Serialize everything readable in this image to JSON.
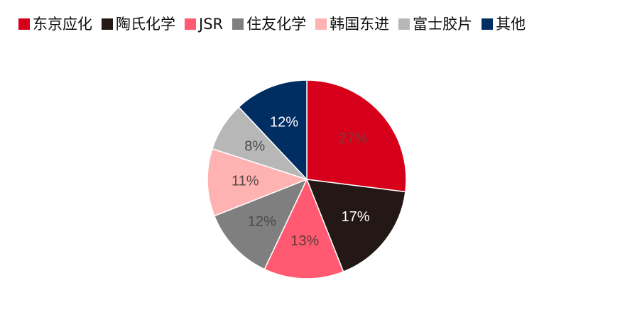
{
  "chart_data": {
    "type": "pie",
    "title": "",
    "legend_position": "top",
    "slices": [
      {
        "name": "东京应化",
        "value": 27,
        "label": "27%",
        "color": "#D7001B",
        "label_color": "#7f3a3a"
      },
      {
        "name": "陶氏化学",
        "value": 17,
        "label": "17%",
        "color": "#231815",
        "label_color": "#ffffff"
      },
      {
        "name": "JSR",
        "value": 13,
        "label": "13%",
        "color": "#FF5A71",
        "label_color": "#5a3a3a"
      },
      {
        "name": "住友化学",
        "value": 12,
        "label": "12%",
        "color": "#7F7F7F",
        "label_color": "#4a4a4a"
      },
      {
        "name": "韩国东进",
        "value": 11,
        "label": "11%",
        "color": "#FFB2B2",
        "label_color": "#5a4a4a"
      },
      {
        "name": "富士胶片",
        "value": 8,
        "label": "8%",
        "color": "#B7B7B7",
        "label_color": "#4a4a4a"
      },
      {
        "name": "其他",
        "value": 12,
        "label": "12%",
        "color": "#002D62",
        "label_color": "#ffffff"
      }
    ]
  }
}
